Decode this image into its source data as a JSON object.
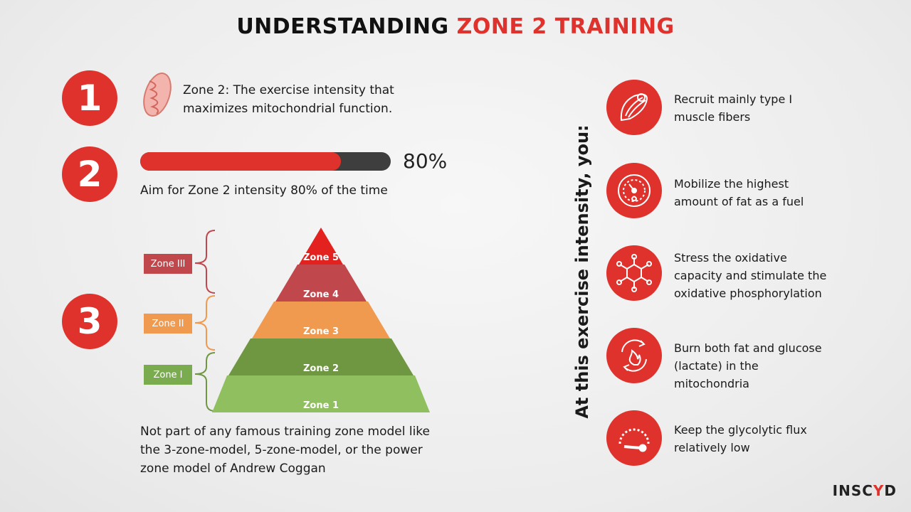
{
  "title": {
    "part1": "UNDERSTANDING ",
    "part2": "ZONE 2 TRAINING",
    "accent_color": "#e0322c"
  },
  "steps": [
    {
      "number": "1",
      "text_line1": "Zone 2: The exercise intensity that",
      "text_line2": "maximizes mitochondrial function.",
      "icon": "mitochondria-icon"
    },
    {
      "number": "2",
      "percent_label": "80%",
      "progress": 0.8,
      "caption": "Aim for Zone 2 intensity 80% of the time"
    },
    {
      "number": "3",
      "caption_line1": "Not part of any famous training zone model like",
      "caption_line2": "the 3-zone-model, 5-zone-model, or the power",
      "caption_line3": "zone model of Andrew Coggan"
    }
  ],
  "pyramid": {
    "levels": [
      {
        "label": "Zone 5",
        "color": "#e3221f"
      },
      {
        "label": "Zone 4",
        "color": "#c0474b"
      },
      {
        "label": "Zone 3",
        "color": "#f09a4f"
      },
      {
        "label": "Zone 2",
        "color": "#6f9741"
      },
      {
        "label": "Zone 1",
        "color": "#8fbf5e"
      }
    ],
    "groups": [
      {
        "label": "Zone III",
        "color": "#c0474b"
      },
      {
        "label": "Zone II",
        "color": "#f09a4f"
      },
      {
        "label": "Zone I",
        "color": "#7bab4f"
      }
    ]
  },
  "side_heading": "At this exercise intensity, you:",
  "benefits": [
    {
      "line1": "Recruit mainly type I",
      "line2": "muscle fibers",
      "icon": "muscle-fiber-icon"
    },
    {
      "line1": "Mobilize the highest",
      "line2": "amount of fat as a fuel",
      "icon": "fat-gauge-icon"
    },
    {
      "line1": "Stress the oxidative",
      "line2": "capacity and stimulate the",
      "line3": "oxidative phosphorylation",
      "icon": "molecule-icon"
    },
    {
      "line1": "Burn both fat and glucose",
      "line2": "(lactate) in the",
      "line3": "mitochondria",
      "icon": "burn-cycle-icon"
    },
    {
      "line1": "Keep the glycolytic flux",
      "line2": "relatively low",
      "icon": "low-gauge-icon"
    }
  ],
  "logo": {
    "part1": "INSC",
    "part2": "Y",
    "part3": "D"
  }
}
